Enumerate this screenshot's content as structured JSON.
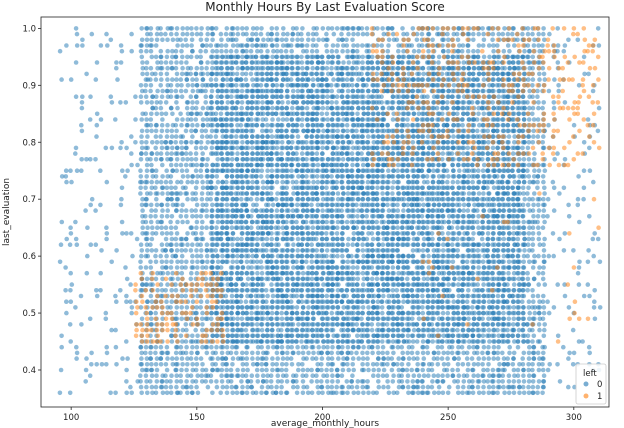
{
  "chart_data": {
    "type": "scatter",
    "title": "Monthly Hours By Last Evaluation Score",
    "xlabel": "average_monthly_hours",
    "ylabel": "last_evaluation",
    "xlim": [
      88,
      314
    ],
    "ylim": [
      0.335,
      1.02
    ],
    "xticks": [
      100,
      150,
      200,
      250,
      300
    ],
    "yticks": [
      0.4,
      0.5,
      0.6,
      0.7,
      0.8,
      0.9,
      1.0
    ],
    "ytick_labels": [
      "0.4",
      "0.5",
      "0.6",
      "0.7",
      "0.8",
      "0.9",
      "1.0"
    ],
    "grid": false,
    "legend": {
      "title": "left",
      "placement": "bottom-right",
      "entries": [
        {
          "label": "0",
          "color": "#1f77b4"
        },
        {
          "label": "1",
          "color": "#ff7f0e"
        }
      ]
    },
    "series": [
      {
        "name": "0",
        "color": "#1f77b4",
        "clusters": [
          {
            "x": [
              96,
              310
            ],
            "y": [
              0.36,
              1.0
            ],
            "density": 0.18
          },
          {
            "x": [
              128,
              288
            ],
            "y": [
              0.36,
              1.0
            ],
            "density": 0.85
          },
          {
            "x": [
              155,
              280
            ],
            "y": [
              0.45,
              0.95
            ],
            "density": 0.9
          }
        ]
      },
      {
        "name": "1",
        "color": "#ff7f0e",
        "clusters": [
          {
            "x": [
              126,
              160
            ],
            "y": [
              0.45,
              0.57
            ],
            "density": 0.55
          },
          {
            "x": [
              220,
              310
            ],
            "y": [
              0.76,
              1.0
            ],
            "density": 0.35
          },
          {
            "x": [
              240,
              310
            ],
            "y": [
              0.45,
              0.75
            ],
            "density": 0.03
          }
        ]
      }
    ]
  }
}
